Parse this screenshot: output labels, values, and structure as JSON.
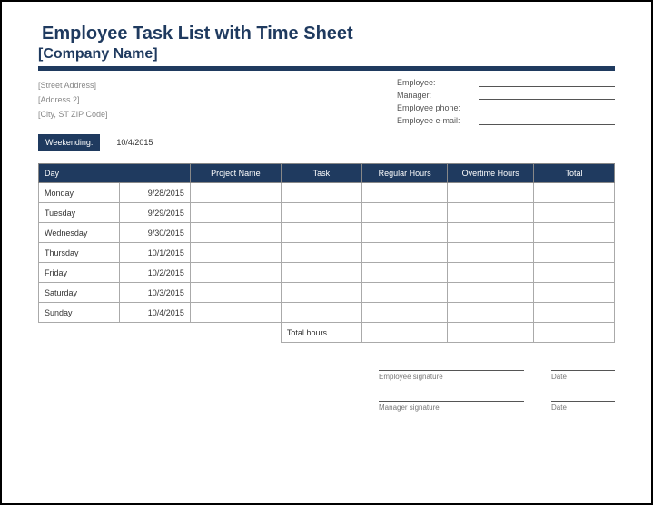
{
  "title": "Employee Task List with Time Sheet",
  "company": "[Company Name]",
  "address": {
    "street": "[Street Address]",
    "line2": "[Address 2]",
    "city": "[City, ST ZIP Code]"
  },
  "employee_fields": {
    "employee": "Employee:",
    "manager": "Manager:",
    "phone": "Employee phone:",
    "email": "Employee e-mail:"
  },
  "weekending": {
    "label": "Weekending:",
    "date": "10/4/2015"
  },
  "columns": {
    "day": "Day",
    "project": "Project Name",
    "task": "Task",
    "regular": "Regular Hours",
    "overtime": "Overtime Hours",
    "total": "Total"
  },
  "rows": [
    {
      "day": "Monday",
      "date": "9/28/2015",
      "project": "",
      "task": "",
      "regular": "",
      "overtime": "",
      "total": ""
    },
    {
      "day": "Tuesday",
      "date": "9/29/2015",
      "project": "",
      "task": "",
      "regular": "",
      "overtime": "",
      "total": ""
    },
    {
      "day": "Wednesday",
      "date": "9/30/2015",
      "project": "",
      "task": "",
      "regular": "",
      "overtime": "",
      "total": ""
    },
    {
      "day": "Thursday",
      "date": "10/1/2015",
      "project": "",
      "task": "",
      "regular": "",
      "overtime": "",
      "total": ""
    },
    {
      "day": "Friday",
      "date": "10/2/2015",
      "project": "",
      "task": "",
      "regular": "",
      "overtime": "",
      "total": ""
    },
    {
      "day": "Saturday",
      "date": "10/3/2015",
      "project": "",
      "task": "",
      "regular": "",
      "overtime": "",
      "total": ""
    },
    {
      "day": "Sunday",
      "date": "10/4/2015",
      "project": "",
      "task": "",
      "regular": "",
      "overtime": "",
      "total": ""
    }
  ],
  "totals_label": "Total hours",
  "signatures": {
    "employee": "Employee signature",
    "manager": "Manager signature",
    "date": "Date"
  },
  "colors": {
    "primary": "#1f3a5f",
    "border": "#aaaaaa",
    "muted": "#888888"
  }
}
